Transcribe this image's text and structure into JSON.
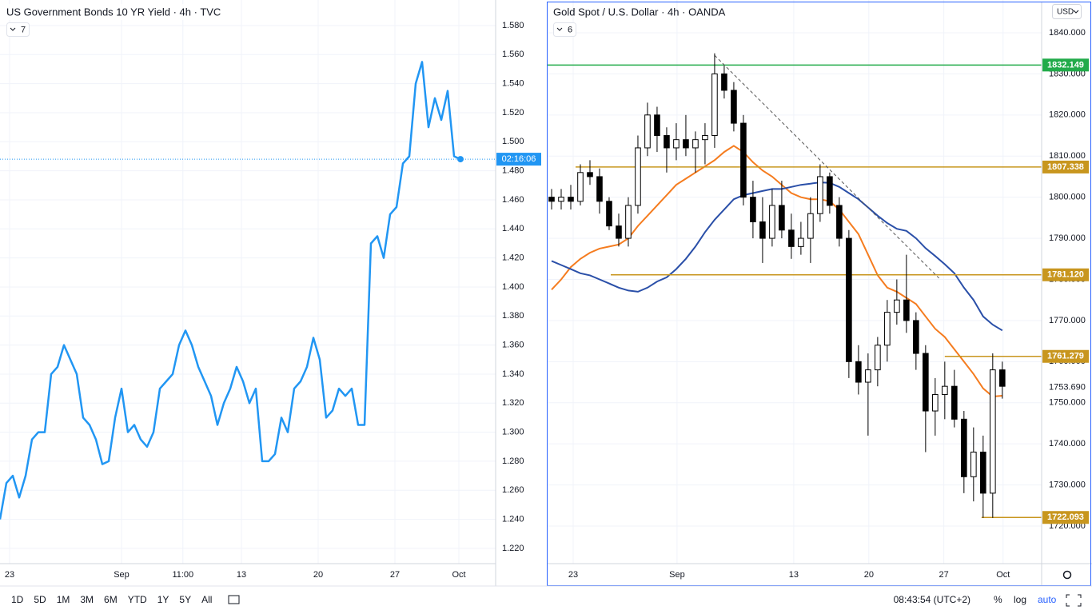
{
  "chart_data": [
    {
      "type": "line",
      "title": "US Government Bonds 10 YR Yield · 4h · TVC",
      "collapsed_count": 7,
      "color": "#2196f3",
      "x": [
        0,
        1,
        2,
        3,
        4,
        5,
        6,
        7,
        8,
        9,
        10,
        11,
        12,
        13,
        14,
        15,
        16,
        17,
        18,
        19,
        20,
        21,
        22,
        23,
        24,
        25,
        26,
        27,
        28,
        29,
        30,
        31,
        32,
        33,
        34,
        35,
        36,
        37,
        38,
        39,
        40,
        41,
        42,
        43,
        44,
        45,
        46,
        47,
        48,
        49,
        50,
        51,
        52,
        53,
        54,
        55,
        56,
        57,
        58,
        59,
        60,
        61,
        62,
        63,
        64,
        65,
        66,
        67,
        68,
        69,
        70,
        71,
        72
      ],
      "values": [
        1.24,
        1.265,
        1.27,
        1.255,
        1.27,
        1.295,
        1.3,
        1.3,
        1.34,
        1.345,
        1.36,
        1.35,
        1.34,
        1.31,
        1.305,
        1.295,
        1.278,
        1.28,
        1.31,
        1.33,
        1.3,
        1.305,
        1.295,
        1.29,
        1.3,
        1.33,
        1.335,
        1.34,
        1.36,
        1.37,
        1.36,
        1.345,
        1.335,
        1.325,
        1.305,
        1.32,
        1.33,
        1.345,
        1.335,
        1.32,
        1.33,
        1.28,
        1.28,
        1.285,
        1.31,
        1.3,
        1.33,
        1.335,
        1.345,
        1.365,
        1.35,
        1.31,
        1.315,
        1.33,
        1.325,
        1.33,
        1.305,
        1.305,
        1.43,
        1.435,
        1.42,
        1.45,
        1.455,
        1.485,
        1.49,
        1.54,
        1.555,
        1.51,
        1.53,
        1.515,
        1.535,
        1.49,
        1.488
      ],
      "countdown": "02:16:06",
      "xlim": [
        0,
        77.5
      ],
      "ylim": [
        1.2095,
        1.5976
      ],
      "xticks": [
        {
          "value": 1.5,
          "label": "23"
        },
        {
          "value": 19,
          "label": "Sep"
        },
        {
          "value": 28.6,
          "label": "11:00"
        },
        {
          "value": 37.75,
          "label": "13"
        },
        {
          "value": 49.75,
          "label": "20"
        },
        {
          "value": 61.75,
          "label": "27"
        },
        {
          "value": 71.75,
          "label": "Oct"
        }
      ],
      "yticks": [
        {
          "value": 1.22,
          "label": "1.220"
        },
        {
          "value": 1.24,
          "label": "1.240"
        },
        {
          "value": 1.26,
          "label": "1.260"
        },
        {
          "value": 1.28,
          "label": "1.280"
        },
        {
          "value": 1.3,
          "label": "1.300"
        },
        {
          "value": 1.32,
          "label": "1.320"
        },
        {
          "value": 1.34,
          "label": "1.340"
        },
        {
          "value": 1.36,
          "label": "1.360"
        },
        {
          "value": 1.38,
          "label": "1.380"
        },
        {
          "value": 1.4,
          "label": "1.400"
        },
        {
          "value": 1.42,
          "label": "1.420"
        },
        {
          "value": 1.44,
          "label": "1.440"
        },
        {
          "value": 1.46,
          "label": "1.460"
        },
        {
          "value": 1.48,
          "label": "1.480"
        },
        {
          "value": 1.5,
          "label": "1.500"
        },
        {
          "value": 1.52,
          "label": "1.520"
        },
        {
          "value": 1.54,
          "label": "1.540"
        },
        {
          "value": 1.56,
          "label": "1.560"
        },
        {
          "value": 1.58,
          "label": "1.580"
        }
      ],
      "grid": true
    },
    {
      "type": "candlestick",
      "title": "Gold Spot / U.S. Dollar · 4h · OANDA",
      "collapsed_count": 6,
      "currency": "USD",
      "x": [
        0,
        1,
        2,
        3,
        4,
        5,
        6,
        7,
        8,
        9,
        10,
        11,
        12,
        13,
        14,
        15,
        16,
        17,
        18,
        19,
        20,
        21,
        22,
        23,
        24,
        25,
        26,
        27,
        28,
        29,
        30,
        31,
        32,
        33,
        34,
        35,
        36,
        37,
        38,
        39,
        40,
        41,
        42,
        43,
        44,
        45,
        46,
        47
      ],
      "open": [
        1800,
        1799,
        1800,
        1799,
        1806,
        1805,
        1799,
        1793,
        1790,
        1798,
        1812,
        1820,
        1815,
        1812,
        1814,
        1812,
        1814,
        1815,
        1830,
        1826,
        1818,
        1800,
        1794,
        1790,
        1798,
        1792,
        1788,
        1790,
        1796,
        1805,
        1798,
        1790,
        1760,
        1755,
        1758,
        1764,
        1772,
        1775,
        1770,
        1762,
        1748,
        1752,
        1754,
        1746,
        1732,
        1738,
        1728,
        1758
      ],
      "high": [
        1802,
        1802,
        1803,
        1808,
        1809,
        1807,
        1800,
        1796,
        1800,
        1815,
        1823,
        1822,
        1817,
        1818,
        1820,
        1816,
        1818,
        1835,
        1832,
        1828,
        1820,
        1804,
        1800,
        1802,
        1804,
        1796,
        1794,
        1800,
        1808,
        1806,
        1800,
        1792,
        1764,
        1762,
        1766,
        1775,
        1780,
        1786,
        1772,
        1764,
        1756,
        1760,
        1758,
        1748,
        1744,
        1742,
        1762,
        1760
      ],
      "low": [
        1797,
        1797,
        1797,
        1798,
        1803,
        1796,
        1792,
        1788,
        1788,
        1796,
        1810,
        1811,
        1806,
        1809,
        1810,
        1806,
        1808,
        1812,
        1824,
        1816,
        1798,
        1790,
        1784,
        1788,
        1790,
        1785,
        1786,
        1784,
        1794,
        1796,
        1788,
        1756,
        1752,
        1742,
        1754,
        1760,
        1769,
        1767,
        1758,
        1738,
        1742,
        1746,
        1744,
        1728,
        1726,
        1722,
        1722,
        1751
      ],
      "close": [
        1799,
        1800,
        1799,
        1806,
        1805,
        1799,
        1793,
        1790,
        1798,
        1812,
        1820,
        1815,
        1812,
        1814,
        1812,
        1814,
        1815,
        1830,
        1826,
        1818,
        1800,
        1794,
        1790,
        1798,
        1792,
        1788,
        1790,
        1796,
        1805,
        1798,
        1790,
        1760,
        1755,
        1758,
        1764,
        1772,
        1775,
        1770,
        1762,
        1748,
        1752,
        1754,
        1746,
        1732,
        1738,
        1728,
        1758,
        1754
      ],
      "moving_averages": [
        {
          "color": "#f57c1f",
          "values": [
            1777.5,
            1780,
            1783,
            1785,
            1786.5,
            1787.5,
            1788,
            1788.5,
            1790,
            1793,
            1795.5,
            1798,
            1800.5,
            1803,
            1804.5,
            1806,
            1807.5,
            1809,
            1811,
            1812.5,
            1811,
            1808.5,
            1806.5,
            1805,
            1803,
            1801,
            1800,
            1799.5,
            1799.5,
            1799,
            1797,
            1794,
            1791,
            1786,
            1781,
            1778,
            1777,
            1775.5,
            1774,
            1771,
            1768,
            1766,
            1763,
            1760,
            1757,
            1753.5,
            1751.5,
            1751.7
          ]
        },
        {
          "color": "#2a4fa8",
          "values": [
            1784.5,
            1783.5,
            1782.5,
            1781.5,
            1781,
            1780,
            1779,
            1778,
            1777.3,
            1777,
            1778,
            1779.5,
            1780.5,
            1782.5,
            1785,
            1788,
            1791.5,
            1794.5,
            1797,
            1799.5,
            1800.5,
            1801,
            1801.5,
            1802,
            1802,
            1802.5,
            1803,
            1803.3,
            1803.6,
            1803.5,
            1802.5,
            1801,
            1799.5,
            1797.5,
            1795.5,
            1793.7,
            1792.3,
            1791.8,
            1790,
            1787.6,
            1785.7,
            1783.7,
            1781.5,
            1778,
            1775,
            1771,
            1769,
            1767.6
          ]
        }
      ],
      "levels": [
        {
          "value": 1832.149,
          "label": "1832.149",
          "color": "#22ab4a",
          "x_start": -0.5
        },
        {
          "value": 1807.338,
          "label": "1807.338",
          "color": "#c8961e",
          "x_start": 2.5
        },
        {
          "value": 1781.12,
          "label": "1781.120",
          "color": "#c8961e",
          "x_start": 6.17
        },
        {
          "value": 1761.279,
          "label": "1761.279",
          "color": "#c8961e",
          "x_start": 41
        },
        {
          "value": 1722.093,
          "label": "1722.093",
          "color": "#c8961e",
          "x_start": 44.83
        }
      ],
      "trendline": {
        "x": [
          17,
          40.4
        ],
        "y": [
          1834.5,
          1780.3
        ]
      },
      "last_price": {
        "value": 1753.69,
        "label": "1753.690"
      },
      "xlim": [
        -0.5,
        51.1
      ],
      "ylim": [
        1710.86,
        1847.97
      ],
      "xticks": [
        {
          "value": 2.25,
          "label": "23"
        },
        {
          "value": 13.08,
          "label": "Sep"
        },
        {
          "value": 25.25,
          "label": "13"
        },
        {
          "value": 33.08,
          "label": "20"
        },
        {
          "value": 40.9,
          "label": "27"
        },
        {
          "value": 47.08,
          "label": "Oct"
        }
      ],
      "yticks": [
        {
          "value": 1720,
          "label": "1720.000"
        },
        {
          "value": 1730,
          "label": "1730.000"
        },
        {
          "value": 1740,
          "label": "1740.000"
        },
        {
          "value": 1750,
          "label": "1750.000"
        },
        {
          "value": 1760,
          "label": "1760.000"
        },
        {
          "value": 1770,
          "label": "1770.000"
        },
        {
          "value": 1780,
          "label": "1780.000"
        },
        {
          "value": 1790,
          "label": "1790.000"
        },
        {
          "value": 1800,
          "label": "1800.000"
        },
        {
          "value": 1810,
          "label": "1810.000"
        },
        {
          "value": 1820,
          "label": "1820.000"
        },
        {
          "value": 1830,
          "label": "1830.000"
        },
        {
          "value": 1840,
          "label": "1840.000"
        }
      ],
      "grid": true
    }
  ],
  "toolbar": {
    "ranges": [
      "1D",
      "5D",
      "1M",
      "3M",
      "6M",
      "YTD",
      "1Y",
      "5Y",
      "All"
    ],
    "clock": "08:43:54 (UTC+2)",
    "options": [
      "%",
      "log",
      "auto"
    ]
  }
}
